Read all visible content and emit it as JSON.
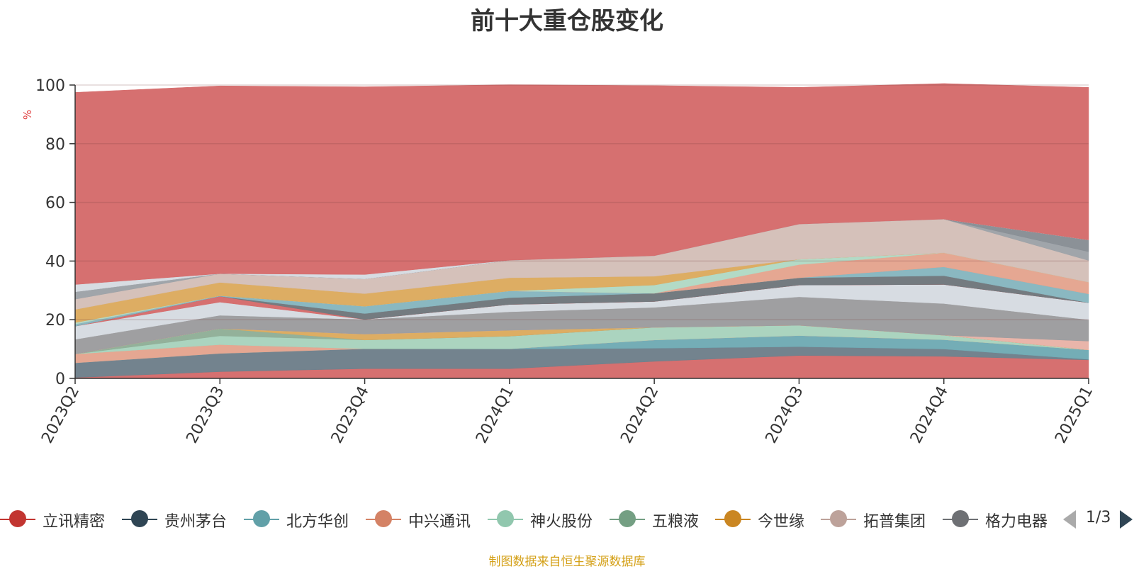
{
  "chart_data": {
    "type": "area",
    "stacked": true,
    "title": "前十大重仓股变化",
    "ylabel": "%",
    "ylim": [
      0,
      100
    ],
    "yticks": [
      0,
      20,
      40,
      60,
      80,
      100
    ],
    "grid": true,
    "categories": [
      "2023Q2",
      "2023Q3",
      "2023Q4",
      "2024Q1",
      "2024Q2",
      "2024Q3",
      "2024Q4",
      "2025Q1"
    ],
    "series": [
      {
        "name": "",
        "color": "#d56b6b",
        "values": [
          0.3,
          2.3,
          3.3,
          3.3,
          5.8,
          7.8,
          7.5,
          6.3
        ]
      },
      {
        "name": "",
        "color": "#6e7f8a",
        "values": [
          5.0,
          6.2,
          6.8,
          6.7,
          4.5,
          3.0,
          2.5,
          0.2
        ]
      },
      {
        "name": "",
        "color": "#6faab4",
        "values": [
          0.0,
          0.0,
          0.0,
          0.1,
          2.8,
          3.8,
          3.2,
          3.2
        ]
      },
      {
        "name": "",
        "color": "#e4a48e",
        "values": [
          3.0,
          3.0,
          0.0,
          0.0,
          0.0,
          0.0,
          0.0,
          0.0
        ]
      },
      {
        "name": "",
        "color": "#a8d3bd",
        "values": [
          0.0,
          3.0,
          3.0,
          4.3,
          4.3,
          3.5,
          1.5,
          0.0
        ]
      },
      {
        "name": "",
        "color": "#8fae97",
        "values": [
          0.0,
          2.5,
          0.0,
          0.0,
          0.0,
          0.0,
          0.0,
          0.0
        ]
      },
      {
        "name": "",
        "color": "#dcaa5e",
        "values": [
          0.0,
          0.0,
          2.0,
          2.0,
          0.0,
          0.0,
          0.0,
          0.0
        ]
      },
      {
        "name": "",
        "color": "#e8b3a7",
        "values": [
          0.0,
          0.0,
          0.0,
          0.0,
          0.0,
          0.0,
          0.0,
          3.0
        ]
      },
      {
        "name": "",
        "color": "#9c9c9e",
        "values": [
          5.0,
          4.5,
          5.0,
          6.3,
          6.8,
          9.7,
          10.8,
          7.3
        ]
      },
      {
        "name": "",
        "color": "#d6dbe1",
        "values": [
          4.5,
          4.5,
          0.0,
          2.5,
          2.0,
          4.0,
          6.5,
          5.8
        ]
      },
      {
        "name": "",
        "color": "#d56b6b",
        "values": [
          0.0,
          2.0,
          0.0,
          0.0,
          0.0,
          0.0,
          0.0,
          0.0
        ]
      },
      {
        "name": "",
        "color": "#70777c",
        "values": [
          0.0,
          0.0,
          2.0,
          2.3,
          2.8,
          2.5,
          3.0,
          0.0
        ]
      },
      {
        "name": "",
        "color": "#86b6bf",
        "values": [
          0.7,
          0.2,
          2.5,
          2.3,
          0.0,
          0.0,
          3.0,
          3.0
        ]
      },
      {
        "name": "",
        "color": "#e4a48e",
        "values": [
          0.0,
          0.0,
          0.0,
          0.0,
          0.0,
          4.5,
          4.8,
          4.0
        ]
      },
      {
        "name": "",
        "color": "#b1d9c4",
        "values": [
          0.5,
          0.0,
          0.0,
          0.0,
          2.8,
          1.8,
          0.0,
          0.0
        ]
      },
      {
        "name": "",
        "color": "#dcaa5e",
        "values": [
          4.5,
          4.5,
          4.3,
          4.5,
          3.0,
          0.0,
          0.0,
          0.0
        ]
      },
      {
        "name": "",
        "color": "#d4bfb8",
        "values": [
          3.5,
          3.0,
          5.0,
          6.0,
          7.0,
          12.0,
          11.5,
          7.4
        ]
      },
      {
        "name": "",
        "color": "#9da2a7",
        "values": [
          2.5,
          0.0,
          0.0,
          0.0,
          0.0,
          0.0,
          0.0,
          3.0
        ]
      },
      {
        "name": "",
        "color": "#878d94",
        "values": [
          0.0,
          0.0,
          0.0,
          0.0,
          0.0,
          0.0,
          0.0,
          4.0
        ]
      },
      {
        "name": "",
        "color": "#d6dbe1",
        "values": [
          2.5,
          0.0,
          1.5,
          0.0,
          0.0,
          0.0,
          0.0,
          0.0
        ]
      },
      {
        "name": "",
        "color": "#d56b6b",
        "values": [
          65.5,
          64.0,
          64.0,
          59.8,
          58.0,
          46.6,
          46.2,
          52.0
        ]
      }
    ],
    "legend": {
      "position": "bottom",
      "items": [
        {
          "name": "立讯精密",
          "color": "#c23531"
        },
        {
          "name": "贵州茅台",
          "color": "#2f4554"
        },
        {
          "name": "北方华创",
          "color": "#61a0a8"
        },
        {
          "name": "中兴通讯",
          "color": "#d48265"
        },
        {
          "name": "神火股份",
          "color": "#91c7ae"
        },
        {
          "name": "五粮液",
          "color": "#749f83"
        },
        {
          "name": "今世缘",
          "color": "#ca8622"
        },
        {
          "name": "拓普集团",
          "color": "#bda29a"
        },
        {
          "name": "格力电器",
          "color": "#6e7074"
        }
      ],
      "page": "1/3"
    }
  },
  "source_note": "制图数据来自恒生聚源数据库"
}
